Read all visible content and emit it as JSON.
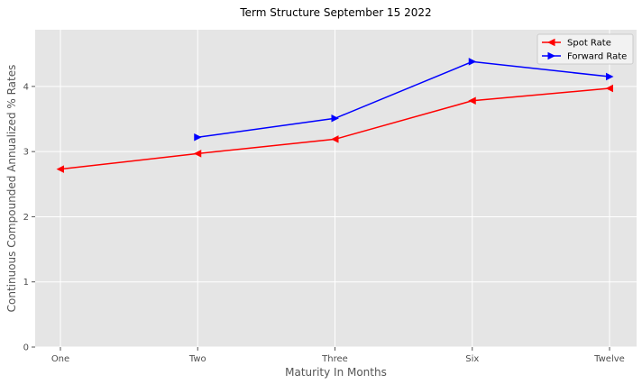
{
  "chart_data": {
    "type": "line",
    "title": "Term Structure September 15 2022",
    "xlabel": "Maturity In Months",
    "ylabel": "Continuous Compounded Annualized % Rates",
    "categories": [
      "One",
      "Two",
      "Three",
      "Six",
      "Twelve"
    ],
    "ylim": [
      0,
      4.87
    ],
    "yticks": [
      0,
      1,
      2,
      3,
      4
    ],
    "grid": true,
    "legend_position": "top-right",
    "series": [
      {
        "name": "Spot Rate",
        "color": "#ff0000",
        "marker": "triangle-left",
        "values": [
          2.73,
          2.97,
          3.19,
          3.78,
          3.97
        ]
      },
      {
        "name": "Forward Rate",
        "color": "#0000ff",
        "marker": "triangle-right",
        "values": [
          null,
          3.22,
          3.51,
          4.38,
          4.15
        ]
      }
    ]
  }
}
